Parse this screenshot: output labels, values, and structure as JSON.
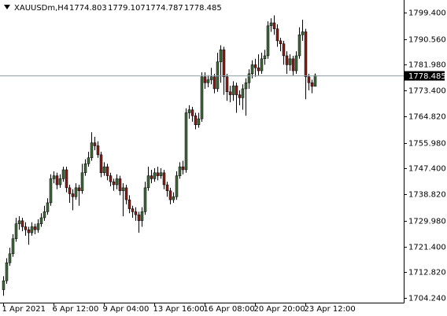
{
  "chart_data": {
    "type": "candlestick",
    "title": "XAUUSDm,H4",
    "up_color": "#3a6b35",
    "down_color": "#8b1c13",
    "wick_color": "#000000",
    "categories": [
      "1 Apr 2021",
      null,
      null,
      null,
      null,
      null,
      null,
      null,
      null,
      null,
      null,
      null,
      null,
      null,
      null,
      null,
      "6 Apr 12:00",
      null,
      null,
      null,
      null,
      null,
      null,
      null,
      null,
      null,
      null,
      null,
      null,
      null,
      null,
      null,
      "9 Apr 04:00",
      null,
      null,
      null,
      null,
      null,
      null,
      null,
      null,
      null,
      null,
      null,
      null,
      null,
      null,
      null,
      "13 Apr 16:00",
      null,
      null,
      null,
      null,
      null,
      null,
      null,
      null,
      null,
      null,
      null,
      null,
      null,
      null,
      null,
      "16 Apr 08:00",
      null,
      null,
      null,
      null,
      null,
      null,
      null,
      null,
      null,
      null,
      null,
      null,
      null,
      null,
      null,
      "20 Apr 20:00",
      null,
      null,
      null,
      null,
      null,
      null,
      null,
      null,
      null,
      null,
      null,
      null,
      null,
      null,
      null,
      "23 Apr 12:00",
      null,
      null,
      null
    ],
    "open": [
      1707,
      1710,
      1716,
      1719,
      1724,
      1729,
      1730,
      1728,
      1727,
      1726,
      1728,
      1727,
      1729,
      1731,
      1733,
      1736,
      1744,
      1745,
      1742,
      1744,
      1747,
      1741,
      1739,
      1738,
      1741,
      1740,
      1746,
      1749,
      1751,
      1756,
      1755,
      1752,
      1746,
      1748,
      1745,
      1743,
      1742,
      1744,
      1740,
      1741,
      1737,
      1734,
      1733,
      1732,
      1730,
      1733,
      1741,
      1745,
      1744,
      1746,
      1745,
      1746,
      1742,
      1740,
      1737,
      1738,
      1745,
      1748,
      1747,
      1766,
      1767,
      1765,
      1762,
      1764,
      1778,
      1776,
      1777,
      1778,
      1774,
      1783,
      1787,
      1778,
      1773,
      1772,
      1775,
      1772,
      1771,
      1774,
      1776,
      1779,
      1782,
      1781,
      1780,
      1784,
      1785,
      1795,
      1796,
      1794,
      1790,
      1789,
      1785,
      1782,
      1784,
      1780,
      1785,
      1792,
      1793,
      1778,
      1776,
      1774.803
    ],
    "high": [
      1711.5,
      1717.5,
      1721,
      1725.5,
      1731,
      1731.5,
      1731,
      1729.5,
      1728,
      1729.5,
      1729,
      1730.5,
      1732.5,
      1735,
      1737.5,
      1745.5,
      1746.5,
      1746,
      1745.5,
      1748,
      1748,
      1742,
      1740.5,
      1742.5,
      1742,
      1749,
      1750.5,
      1753,
      1759.5,
      1758,
      1756.5,
      1753,
      1749.5,
      1749,
      1746,
      1744,
      1745.5,
      1745,
      1742.5,
      1742,
      1738.5,
      1735,
      1734.5,
      1733,
      1734.5,
      1743,
      1748,
      1747,
      1747.5,
      1748,
      1747.5,
      1747,
      1743,
      1741,
      1739.5,
      1746.5,
      1749.5,
      1750,
      1767.5,
      1768.5,
      1768,
      1766,
      1766,
      1779.5,
      1779.5,
      1778.5,
      1781,
      1779,
      1786,
      1788.5,
      1788,
      1779,
      1775,
      1776.5,
      1776,
      1773.5,
      1775.5,
      1777.5,
      1780.5,
      1783.5,
      1784,
      1785.5,
      1786,
      1787,
      1796.5,
      1797.5,
      1798.5,
      1795.5,
      1791,
      1790,
      1786.5,
      1785.5,
      1785,
      1786.5,
      1794.5,
      1797,
      1794,
      1779,
      1777,
      1779.107
    ],
    "low": [
      1705,
      1709,
      1715,
      1718,
      1723,
      1727,
      1726.5,
      1725,
      1722,
      1725,
      1725.5,
      1726,
      1728,
      1730,
      1732,
      1735,
      1742.5,
      1740.5,
      1741,
      1743,
      1739.5,
      1736,
      1733.5,
      1737,
      1735,
      1739,
      1745,
      1748,
      1750,
      1753.5,
      1751,
      1744.5,
      1745,
      1743.5,
      1741.5,
      1740,
      1740.5,
      1738.5,
      1731.5,
      1735.5,
      1732.5,
      1731,
      1730,
      1726,
      1728,
      1732,
      1740,
      1742.5,
      1743,
      1743.5,
      1744,
      1740.5,
      1738,
      1735.5,
      1736,
      1737,
      1744,
      1745.5,
      1746,
      1764,
      1763,
      1760.5,
      1761,
      1763,
      1774,
      1774.5,
      1775.5,
      1772.5,
      1773,
      1776,
      1772,
      1770,
      1769.5,
      1770,
      1766,
      1768.5,
      1767,
      1765,
      1774,
      1777.5,
      1778,
      1778.5,
      1779,
      1782,
      1784,
      1793,
      1792,
      1788,
      1786.5,
      1782,
      1779,
      1780,
      1778.5,
      1779,
      1784,
      1790,
      1770.5,
      1773.5,
      1772.5,
      1774.787
    ],
    "close": [
      1710,
      1716,
      1719,
      1724,
      1729,
      1730,
      1728,
      1727,
      1726,
      1728,
      1727,
      1729,
      1731,
      1733,
      1736,
      1744,
      1745,
      1742,
      1744,
      1747,
      1741,
      1739,
      1738,
      1741,
      1740,
      1746,
      1749,
      1751,
      1756,
      1755,
      1752,
      1746,
      1748,
      1745,
      1743,
      1742,
      1744,
      1740,
      1741,
      1737,
      1734,
      1733,
      1732,
      1730,
      1733,
      1741,
      1745,
      1744,
      1746,
      1745,
      1746,
      1742,
      1740,
      1737,
      1738,
      1745,
      1748,
      1747,
      1766,
      1767,
      1765,
      1762,
      1764,
      1778,
      1776,
      1777,
      1778,
      1774,
      1783,
      1787,
      1778,
      1773,
      1772,
      1775,
      1772,
      1771,
      1774,
      1776,
      1779,
      1782,
      1781,
      1780,
      1784,
      1785,
      1795,
      1796,
      1794,
      1790,
      1789,
      1785,
      1782,
      1784,
      1780,
      1785,
      1792,
      1793,
      1778,
      1776,
      1774.803,
      1778.485
    ],
    "ylim": [
      1702.7,
      1803.6
    ],
    "yticks": [
      {
        "value": 1704.24,
        "label": "1704.240"
      },
      {
        "value": 1712.82,
        "label": "1712.820"
      },
      {
        "value": 1721.4,
        "label": "1721.400"
      },
      {
        "value": 1729.98,
        "label": "1729.980"
      },
      {
        "value": 1738.82,
        "label": "1738.820"
      },
      {
        "value": 1747.4,
        "label": "1747.400"
      },
      {
        "value": 1755.98,
        "label": "1755.980"
      },
      {
        "value": 1764.82,
        "label": "1764.820"
      },
      {
        "value": 1773.4,
        "label": "1773.400"
      },
      {
        "value": 1781.98,
        "label": "1781.980"
      },
      {
        "value": 1790.56,
        "label": "1790.560"
      },
      {
        "value": 1799.4,
        "label": "1799.400"
      }
    ],
    "price_line_color": "#8fa0a8"
  }
}
